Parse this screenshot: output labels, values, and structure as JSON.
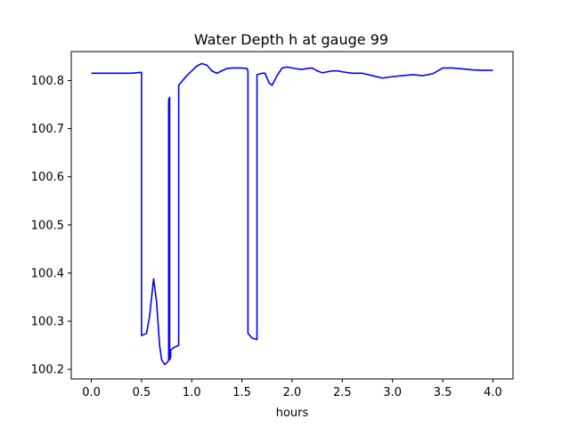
{
  "chart_data": {
    "type": "line",
    "title": "Water Depth h at gauge 99",
    "xlabel": "hours",
    "ylabel": "",
    "xlim": [
      -0.2,
      4.2
    ],
    "ylim": [
      100.18,
      100.86
    ],
    "xticks": [
      0.0,
      0.5,
      1.0,
      1.5,
      2.0,
      2.5,
      3.0,
      3.5,
      4.0
    ],
    "xtick_labels": [
      "0.0",
      "0.5",
      "1.0",
      "1.5",
      "2.0",
      "2.5",
      "3.0",
      "3.5",
      "4.0"
    ],
    "yticks": [
      100.2,
      100.3,
      100.4,
      100.5,
      100.6,
      100.7,
      100.8
    ],
    "ytick_labels": [
      "100.2",
      "100.3",
      "100.4",
      "100.5",
      "100.6",
      "100.7",
      "100.8"
    ],
    "grid": false,
    "color": "#0000ff",
    "series": [
      {
        "x": [
          0.0,
          0.2,
          0.4,
          0.5,
          0.5,
          0.55,
          0.58,
          0.62,
          0.65,
          0.68,
          0.7,
          0.73,
          0.76,
          0.77,
          0.77,
          0.78,
          0.78,
          0.79,
          0.79,
          0.82,
          0.87,
          0.87,
          0.95,
          1.0,
          1.05,
          1.1,
          1.15,
          1.2,
          1.25,
          1.3,
          1.35,
          1.4,
          1.45,
          1.5,
          1.55,
          1.56,
          1.56,
          1.6,
          1.65,
          1.65,
          1.7,
          1.73,
          1.77,
          1.8,
          1.85,
          1.9,
          1.95,
          2.0,
          2.05,
          2.1,
          2.15,
          2.2,
          2.25,
          2.3,
          2.35,
          2.4,
          2.45,
          2.5,
          2.6,
          2.7,
          2.8,
          2.9,
          3.0,
          3.1,
          3.2,
          3.3,
          3.4,
          3.5,
          3.6,
          3.7,
          3.8,
          3.9,
          4.0
        ],
        "y": [
          100.815,
          100.815,
          100.815,
          100.817,
          100.27,
          100.275,
          100.31,
          100.388,
          100.34,
          100.25,
          100.22,
          100.21,
          100.215,
          100.22,
          100.76,
          100.765,
          100.22,
          100.225,
          100.24,
          100.245,
          100.25,
          100.79,
          100.81,
          100.82,
          100.83,
          100.835,
          100.832,
          100.82,
          100.815,
          100.82,
          100.825,
          100.826,
          100.826,
          100.826,
          100.825,
          100.82,
          100.275,
          100.265,
          100.262,
          100.812,
          100.815,
          100.815,
          100.795,
          100.79,
          100.81,
          100.826,
          100.828,
          100.826,
          100.824,
          100.823,
          100.825,
          100.826,
          100.82,
          100.816,
          100.818,
          100.82,
          100.82,
          100.818,
          100.815,
          100.815,
          100.81,
          100.805,
          100.808,
          100.81,
          100.812,
          100.81,
          100.814,
          100.826,
          100.826,
          100.824,
          100.822,
          100.821,
          100.821
        ]
      }
    ]
  }
}
